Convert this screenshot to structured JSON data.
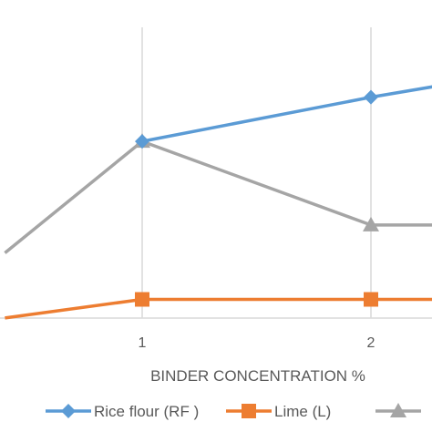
{
  "chart_data": {
    "type": "line",
    "xlabel": "BINDER CONCENTRATION %",
    "x_ticks": [
      "1",
      "2"
    ],
    "x": [
      0.4,
      1,
      2,
      2.3
    ],
    "grid": "vertical",
    "legend_position": "bottom",
    "series": [
      {
        "name": "Rice flour (RF )",
        "color": "#5B9BD5",
        "marker": "diamond",
        "x": [
          1,
          2,
          2.3
        ],
        "values": [
          0.78,
          0.97,
          1.02
        ]
      },
      {
        "name": "Lime (L)",
        "color": "#ED7D31",
        "marker": "square",
        "x": [
          0.4,
          1,
          2,
          2.3
        ],
        "values": [
          0.02,
          0.1,
          0.1,
          0.1
        ]
      },
      {
        "name": "",
        "color": "#A5A5A5",
        "marker": "triangle",
        "x": [
          0.4,
          1,
          2,
          2.3
        ],
        "values": [
          0.3,
          0.78,
          0.42,
          0.42
        ]
      }
    ]
  }
}
